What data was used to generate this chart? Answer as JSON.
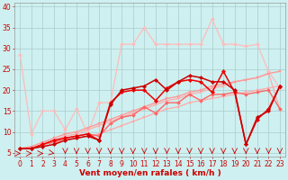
{
  "bg_color": "#cef0f0",
  "grid_color": "#aacccc",
  "xlabel": "Vent moyen/en rafales ( km/h )",
  "ylabel_ticks": [
    5,
    10,
    15,
    20,
    25,
    30,
    35,
    40
  ],
  "xlim": [
    -0.5,
    23.5
  ],
  "ylim": [
    4,
    41
  ],
  "x_ticks": [
    0,
    1,
    2,
    3,
    4,
    5,
    6,
    7,
    8,
    9,
    10,
    11,
    12,
    13,
    14,
    15,
    16,
    17,
    18,
    19,
    20,
    21,
    22,
    23
  ],
  "lines": [
    {
      "x": [
        0,
        1,
        2,
        3,
        4,
        5,
        6,
        7,
        8,
        9,
        10,
        11,
        12,
        13,
        14,
        15,
        16,
        17,
        18,
        19,
        20,
        21,
        22,
        23
      ],
      "y": [
        6,
        6,
        7,
        7.5,
        8,
        8.5,
        9,
        9.5,
        10.5,
        11.5,
        12.5,
        13.5,
        14.5,
        15.5,
        16,
        17,
        17.5,
        18,
        18.5,
        19,
        19.5,
        20,
        20.5,
        21
      ],
      "color": "#ffaaaa",
      "lw": 0.9,
      "marker": "s",
      "ms": 1.8
    },
    {
      "x": [
        0,
        1,
        2,
        3,
        4,
        5,
        6,
        7,
        8,
        9,
        10,
        11,
        12,
        13,
        14,
        15,
        16,
        17,
        18,
        19,
        20,
        21,
        22,
        23
      ],
      "y": [
        6,
        6,
        7,
        8,
        9,
        9.5,
        10.5,
        11.5,
        12.5,
        13.5,
        14.5,
        15.5,
        16.5,
        17.5,
        18,
        19,
        19.5,
        20.5,
        21,
        22,
        22.5,
        23,
        24,
        15.5
      ],
      "color": "#ffaaaa",
      "lw": 0.9,
      "marker": "s",
      "ms": 1.8
    },
    {
      "x": [
        0,
        1,
        2,
        3,
        4,
        5,
        6,
        7,
        8,
        9,
        10,
        11,
        12,
        13,
        14,
        15,
        16,
        17,
        18,
        19,
        20,
        21,
        22,
        23
      ],
      "y": [
        28.5,
        9.5,
        15,
        15,
        10.5,
        15.5,
        9.5,
        17,
        17,
        31,
        31,
        35,
        31,
        31,
        31,
        31,
        31,
        37,
        31,
        31,
        30.5,
        31,
        24.5,
        20.5
      ],
      "color": "#ffbbbb",
      "lw": 0.9,
      "marker": "D",
      "ms": 2.0
    },
    {
      "x": [
        0,
        1,
        2,
        3,
        4,
        5,
        6,
        7,
        8,
        9,
        10,
        11,
        12,
        13,
        14,
        15,
        16,
        17,
        18,
        19,
        20,
        21,
        22,
        23
      ],
      "y": [
        6,
        6.5,
        7.5,
        8.5,
        9.5,
        10,
        11,
        12,
        13,
        14,
        15,
        16,
        17,
        18,
        18.5,
        19.5,
        20,
        21,
        21.5,
        22,
        22.5,
        23,
        24,
        24.5
      ],
      "color": "#ff9999",
      "lw": 1.0,
      "marker": "s",
      "ms": 1.8
    },
    {
      "x": [
        0,
        1,
        2,
        3,
        4,
        5,
        6,
        7,
        8,
        9,
        10,
        11,
        12,
        13,
        14,
        15,
        16,
        17,
        18,
        19,
        20,
        21,
        22,
        23
      ],
      "y": [
        6,
        6,
        7,
        7.5,
        8.5,
        9,
        9.5,
        9,
        12,
        13.5,
        14,
        16,
        14.5,
        17,
        17,
        19,
        17.5,
        19,
        19,
        19.5,
        19,
        19.5,
        20,
        15.5
      ],
      "color": "#ff6666",
      "lw": 1.0,
      "marker": "D",
      "ms": 2.0
    },
    {
      "x": [
        0,
        1,
        2,
        3,
        4,
        5,
        6,
        7,
        8,
        9,
        10,
        11,
        12,
        13,
        14,
        15,
        16,
        17,
        18,
        19,
        20,
        21,
        22,
        23
      ],
      "y": [
        6,
        6,
        7,
        8,
        8.5,
        9,
        9.5,
        8,
        17,
        19.5,
        20,
        20,
        17.5,
        20.5,
        22,
        22.5,
        22,
        19.5,
        24.5,
        19.5,
        7,
        13,
        15.5,
        21
      ],
      "color": "#ee0000",
      "lw": 1.1,
      "marker": "D",
      "ms": 2.2
    },
    {
      "x": [
        0,
        1,
        2,
        3,
        4,
        5,
        6,
        7,
        8,
        9,
        10,
        11,
        12,
        13,
        14,
        15,
        16,
        17,
        18,
        19,
        20,
        21,
        22,
        23
      ],
      "y": [
        6,
        6,
        6.5,
        7,
        8,
        8.5,
        9,
        8,
        16.5,
        20,
        20.5,
        21,
        22.5,
        20,
        22,
        23.5,
        23,
        22,
        22,
        20,
        7,
        13.5,
        15,
        21
      ],
      "color": "#cc0000",
      "lw": 1.1,
      "marker": "D",
      "ms": 2.2
    }
  ],
  "tick_fontsize": 5.5,
  "xlabel_fontsize": 6.5
}
